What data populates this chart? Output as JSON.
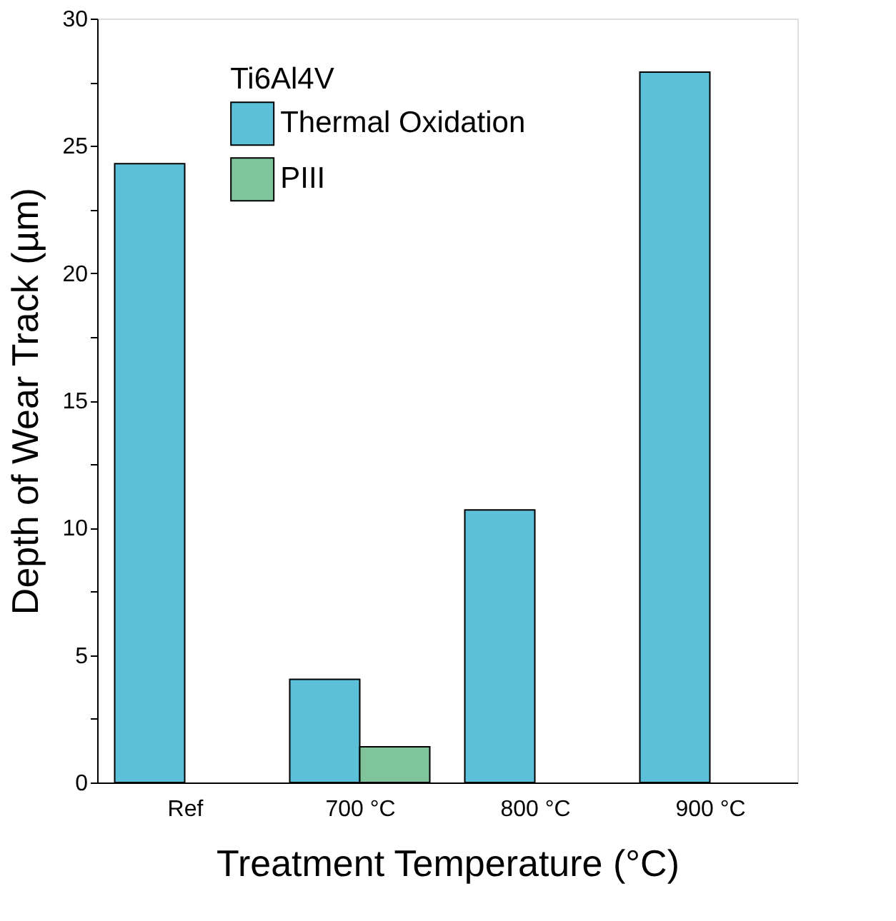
{
  "chart_data": {
    "type": "bar",
    "xlabel": "Treatment Temperature (°C)",
    "ylabel": "Depth of Wear Track (µm)",
    "legend_title": "Ti6Al4V",
    "categories": [
      "Ref",
      "700 °C",
      "800 °C",
      "900 °C"
    ],
    "series": [
      {
        "name": "Thermal Oxidation",
        "color": "#5bc0d8",
        "values": [
          24.3,
          4.05,
          10.7,
          27.9
        ]
      },
      {
        "name": "PIII",
        "color": "#80c49b",
        "values": [
          null,
          1.4,
          null,
          null
        ]
      }
    ],
    "ylim": [
      0,
      30
    ],
    "yticks": [
      0,
      {
        "value": 2.5,
        "label": null
      },
      5,
      {
        "value": 7.5,
        "label": null
      },
      10,
      {
        "value": 12.5,
        "label": null
      },
      15,
      {
        "value": 17.5,
        "label": null
      },
      20,
      {
        "value": 22.5,
        "label": null
      },
      25,
      {
        "value": 27.5,
        "label": null
      },
      30
    ],
    "grid": false,
    "legend": "top left"
  }
}
